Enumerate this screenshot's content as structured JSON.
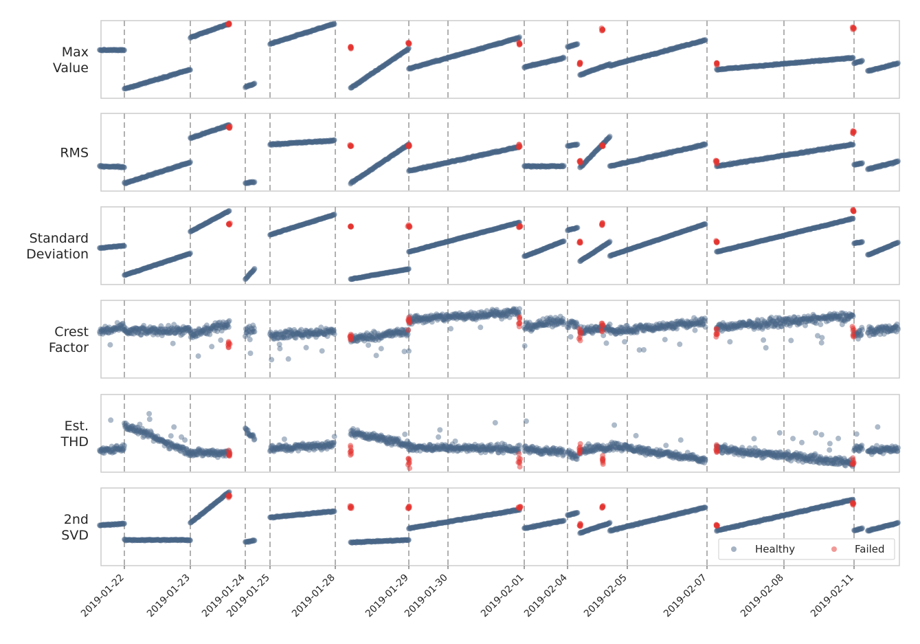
{
  "chart_data": {
    "type": "scatter",
    "title": "",
    "xlabel": "",
    "x_ticks": [
      "2019-01-22",
      "2019-01-23",
      "2019-01-24",
      "2019-01-25",
      "2019-01-28",
      "2019-01-29",
      "2019-01-30",
      "2019-02-01",
      "2019-02-04",
      "2019-02-05",
      "2019-02-07",
      "2019-02-08",
      "2019-02-11"
    ],
    "grid": false,
    "day_separators": "dashed vertical lines at each tick",
    "legend": {
      "placement": "bottom-right of last panel",
      "entries": [
        {
          "label": "Healthy",
          "color": "#4a6688"
        },
        {
          "label": "Failed",
          "color": "#e3342f"
        }
      ]
    },
    "panels": [
      {
        "ylabel_lines": [
          "Max",
          "Value"
        ],
        "feature": "max_value"
      },
      {
        "ylabel_lines": [
          "RMS"
        ],
        "feature": "rms"
      },
      {
        "ylabel_lines": [
          "Standard",
          "Deviation"
        ],
        "feature": "std"
      },
      {
        "ylabel_lines": [
          "Crest",
          "Factor"
        ],
        "feature": "crest"
      },
      {
        "ylabel_lines": [
          "Est.",
          "THD"
        ],
        "feature": "thd"
      },
      {
        "ylabel_lines": [
          "2nd",
          "SVD"
        ],
        "feature": "svd2"
      }
    ],
    "segments": [
      {
        "start": "2019-01-21 15:00",
        "end": "2019-01-22 00:00"
      },
      {
        "start": "2019-01-22 00:00",
        "end": "2019-01-23 00:00"
      },
      {
        "start": "2019-01-23 00:00",
        "end": "2019-01-23 17:00"
      },
      {
        "start": "2019-01-24 00:00",
        "end": "2019-01-24 09:00"
      },
      {
        "start": "2019-01-25 00:00",
        "end": "2019-01-27 23:00"
      },
      {
        "start": "2019-01-28 05:00",
        "end": "2019-01-29 00:00"
      },
      {
        "start": "2019-01-29 00:00",
        "end": "2019-01-31 21:00"
      },
      {
        "start": "2019-02-01 00:00",
        "end": "2019-02-03 18:00"
      },
      {
        "start": "2019-02-04 00:00",
        "end": "2019-02-04 04:00"
      },
      {
        "start": "2019-02-04 05:00",
        "end": "2019-02-04 17:00"
      },
      {
        "start": "2019-02-04 17:00",
        "end": "2019-02-06 23:00"
      },
      {
        "start": "2019-02-07 03:00",
        "end": "2019-02-10 23:00"
      },
      {
        "start": "2019-02-11 00:00",
        "end": "2019-02-11 03:00"
      },
      {
        "start": "2019-02-11 05:00",
        "end": "2019-02-11 16:00"
      }
    ],
    "series": [
      {
        "name": "Healthy",
        "max_value": [
          [
            0.62,
            0.62
          ],
          [
            0.12,
            0.37
          ],
          [
            0.78,
            0.96
          ],
          [
            0.14,
            0.19
          ],
          [
            0.7,
            0.96
          ],
          [
            0.13,
            0.64
          ],
          [
            0.38,
            0.78
          ],
          [
            0.4,
            0.52
          ],
          [
            0.66,
            0.7
          ],
          [
            0.3,
            0.44
          ],
          [
            0.42,
            0.75
          ],
          [
            0.37,
            0.52
          ],
          [
            0.45,
            0.48
          ],
          [
            0.35,
            0.45
          ]
        ],
        "rms": [
          [
            0.32,
            0.31
          ],
          [
            0.1,
            0.37
          ],
          [
            0.68,
            0.85
          ],
          [
            0.1,
            0.12
          ],
          [
            0.6,
            0.65
          ],
          [
            0.1,
            0.6
          ],
          [
            0.26,
            0.57
          ],
          [
            0.32,
            0.32
          ],
          [
            0.58,
            0.6
          ],
          [
            0.3,
            0.7
          ],
          [
            0.32,
            0.6
          ],
          [
            0.32,
            0.6
          ],
          [
            0.34,
            0.36
          ],
          [
            0.28,
            0.38
          ]
        ],
        "std": [
          [
            0.47,
            0.5
          ],
          [
            0.12,
            0.4
          ],
          [
            0.68,
            0.95
          ],
          [
            0.07,
            0.2
          ],
          [
            0.64,
            0.9
          ],
          [
            0.07,
            0.2
          ],
          [
            0.42,
            0.8
          ],
          [
            0.36,
            0.56
          ],
          [
            0.7,
            0.73
          ],
          [
            0.3,
            0.55
          ],
          [
            0.37,
            0.78
          ],
          [
            0.42,
            0.85
          ],
          [
            0.53,
            0.55
          ],
          [
            0.38,
            0.54
          ]
        ],
        "crest": [
          [
            0.6,
            0.65
          ],
          [
            0.6,
            0.62
          ],
          [
            0.55,
            0.7
          ],
          [
            0.58,
            0.65
          ],
          [
            0.55,
            0.6
          ],
          [
            0.5,
            0.6
          ],
          [
            0.75,
            0.85
          ],
          [
            0.65,
            0.75
          ],
          [
            0.7,
            0.7
          ],
          [
            0.6,
            0.65
          ],
          [
            0.6,
            0.72
          ],
          [
            0.65,
            0.8
          ],
          [
            0.55,
            0.6
          ],
          [
            0.6,
            0.65
          ]
        ],
        "thd": [
          [
            0.28,
            0.32
          ],
          [
            0.6,
            0.25
          ],
          [
            0.25,
            0.25
          ],
          [
            0.55,
            0.45
          ],
          [
            0.3,
            0.35
          ],
          [
            0.52,
            0.35
          ],
          [
            0.32,
            0.3
          ],
          [
            0.3,
            0.25
          ],
          [
            0.25,
            0.2
          ],
          [
            0.28,
            0.32
          ],
          [
            0.35,
            0.15
          ],
          [
            0.3,
            0.12
          ],
          [
            0.3,
            0.32
          ],
          [
            0.28,
            0.3
          ]
        ],
        "svd2": [
          [
            0.52,
            0.54
          ],
          [
            0.33,
            0.33
          ],
          [
            0.55,
            0.95
          ],
          [
            0.3,
            0.33
          ],
          [
            0.62,
            0.7
          ],
          [
            0.3,
            0.33
          ],
          [
            0.48,
            0.72
          ],
          [
            0.48,
            0.58
          ],
          [
            0.65,
            0.68
          ],
          [
            0.42,
            0.55
          ],
          [
            0.45,
            0.75
          ],
          [
            0.45,
            0.85
          ],
          [
            0.45,
            0.48
          ],
          [
            0.45,
            0.55
          ]
        ]
      },
      {
        "name": "Failed",
        "max_value": [
          [
            0.95
          ],
          [
            0.65
          ],
          [
            0.7
          ],
          [
            0.7
          ],
          [
            0.45
          ],
          [
            0.88
          ],
          [
            0.45
          ],
          [
            0.9
          ]
        ],
        "rms": [
          [
            0.82
          ],
          [
            0.58
          ],
          [
            0.58
          ],
          [
            0.58
          ],
          [
            0.38
          ],
          [
            0.58
          ],
          [
            0.38
          ],
          [
            0.75
          ]
        ],
        "std": [
          [
            0.78
          ],
          [
            0.75
          ],
          [
            0.75
          ],
          [
            0.75
          ],
          [
            0.55
          ],
          [
            0.78
          ],
          [
            0.55
          ],
          [
            0.95
          ]
        ],
        "crest": [
          [
            0.45
          ],
          [
            0.5
          ],
          [
            0.7
          ],
          [
            0.75
          ],
          [
            0.55
          ],
          [
            0.65
          ],
          [
            0.55
          ],
          [
            0.6
          ]
        ],
        "thd": [
          [
            0.22
          ],
          [
            0.3
          ],
          [
            0.15
          ],
          [
            0.15
          ],
          [
            0.3
          ],
          [
            0.15
          ],
          [
            0.3
          ],
          [
            0.1
          ]
        ],
        "svd2": [
          [
            0.9
          ],
          [
            0.75
          ],
          [
            0.75
          ],
          [
            0.75
          ],
          [
            0.52
          ],
          [
            0.75
          ],
          [
            0.52
          ],
          [
            0.8
          ]
        ]
      }
    ],
    "failure_points": [
      "2019-01-23 17:00",
      "2019-01-28 05:00",
      "2019-01-29 00:00",
      "2019-01-31 21:00",
      "2019-02-04 05:00",
      "2019-02-04 14:00",
      "2019-02-07 03:00",
      "2019-02-10 23:00"
    ],
    "ylim": [
      0,
      1
    ]
  }
}
